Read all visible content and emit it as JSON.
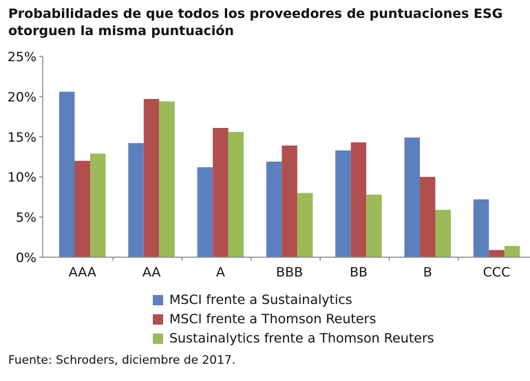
{
  "chart_data": {
    "type": "bar",
    "title": "Probabilidades de que todos los proveedores de puntuaciones ESG otorguen la misma puntuación",
    "categories": [
      "AAA",
      "AA",
      "A",
      "BBB",
      "BB",
      "B",
      "CCC"
    ],
    "series": [
      {
        "name": "MSCI frente a Sustainalytics",
        "color": "#5b80bd",
        "values": [
          20.6,
          14.2,
          11.2,
          11.9,
          13.3,
          14.9,
          7.2
        ]
      },
      {
        "name": "MSCI frente a Thomson Reuters",
        "color": "#b14f4e",
        "values": [
          12.0,
          19.7,
          16.1,
          13.9,
          14.3,
          10.0,
          0.9
        ]
      },
      {
        "name": "Sustainalytics frente a Thomson Reuters",
        "color": "#9bbb59",
        "values": [
          12.9,
          19.4,
          15.6,
          8.0,
          7.8,
          5.9,
          1.4
        ]
      }
    ],
    "ylim": [
      0,
      25
    ],
    "yticks": [
      "0%",
      "5%",
      "10%",
      "15%",
      "20%",
      "25%"
    ],
    "ytick_values": [
      0,
      5,
      10,
      15,
      20,
      25
    ],
    "xlabel": "",
    "ylabel": "",
    "grid": false,
    "legend_position": "bottom"
  },
  "header": {
    "title_line1": "Probabilidades de que todos los proveedores de puntuaciones ESG",
    "title_line2": "otorguen la misma puntuación"
  },
  "footer": {
    "source": "Fuente: Schroders, diciembre de 2017."
  }
}
